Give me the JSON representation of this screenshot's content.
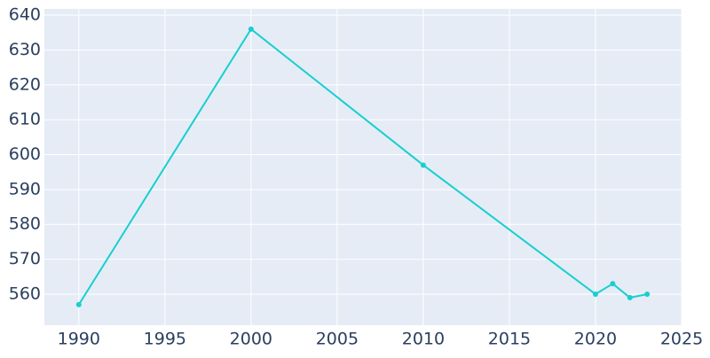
{
  "chart_data": {
    "type": "line",
    "x": [
      1990,
      2000,
      2010,
      2020,
      2021,
      2022,
      2023
    ],
    "series": [
      {
        "color": "#17cfcf",
        "values": [
          557,
          636,
          597,
          560,
          563,
          559,
          560
        ]
      }
    ],
    "xlim": [
      1988,
      2025
    ],
    "xticks": [
      1990,
      1995,
      2000,
      2005,
      2010,
      2015,
      2020,
      2025
    ],
    "ylim": [
      551.1,
      641.8
    ],
    "yticks": [
      560,
      570,
      580,
      590,
      600,
      610,
      620,
      630,
      640
    ],
    "grid": true,
    "plot_background": "#e5ecf6"
  }
}
